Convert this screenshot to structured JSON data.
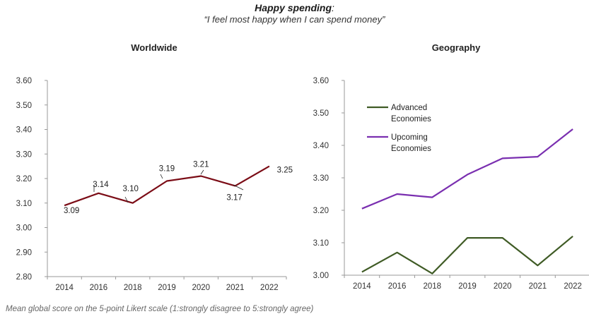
{
  "header": {
    "title": "Happy spending",
    "subtitle": "“I feel most happy when I can spend money”"
  },
  "footnote": "Mean global score on the 5-point Likert scale (1:strongly disagree to 5:strongly agree)",
  "chart_data": [
    {
      "type": "line",
      "title": "Worldwide",
      "categories": [
        "2014",
        "2016",
        "2018",
        "2019",
        "2020",
        "2021",
        "2022"
      ],
      "ylim": [
        2.8,
        3.6
      ],
      "yticks": [
        "2.80",
        "2.90",
        "3.00",
        "3.10",
        "3.20",
        "3.30",
        "3.40",
        "3.50",
        "3.60"
      ],
      "series": [
        {
          "color": "#7b0c16",
          "values": [
            3.09,
            3.14,
            3.1,
            3.19,
            3.21,
            3.17,
            3.25
          ],
          "labels": [
            "3.09",
            "3.14",
            "3.10",
            "3.19",
            "3.21",
            "3.17",
            "3.25"
          ]
        }
      ],
      "legend": "none",
      "grid": false
    },
    {
      "type": "line",
      "title": "Geography",
      "categories": [
        "2014",
        "2016",
        "2018",
        "2019",
        "2020",
        "2021",
        "2022"
      ],
      "ylim": [
        3.0,
        3.6
      ],
      "yticks": [
        "3.00",
        "3.10",
        "3.20",
        "3.30",
        "3.40",
        "3.50",
        "3.60"
      ],
      "series": [
        {
          "name": "Advanced Economies",
          "legend_lines": [
            "Advanced",
            "Economies"
          ],
          "color": "#3f5b25",
          "values": [
            3.01,
            3.07,
            3.005,
            3.115,
            3.115,
            3.03,
            3.12
          ]
        },
        {
          "name": "Upcoming Economies",
          "legend_lines": [
            "Upcoming",
            "Economies"
          ],
          "color": "#7a2fb0",
          "values": [
            3.205,
            3.25,
            3.24,
            3.31,
            3.36,
            3.365,
            3.45
          ]
        }
      ],
      "legend": "top-left",
      "grid": false
    }
  ]
}
